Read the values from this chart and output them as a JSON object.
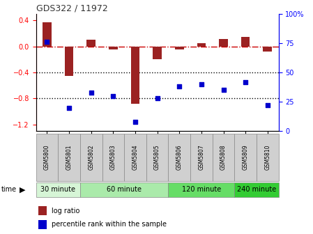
{
  "title": "GDS322 / 11972",
  "samples": [
    "GSM5800",
    "GSM5801",
    "GSM5802",
    "GSM5803",
    "GSM5804",
    "GSM5805",
    "GSM5806",
    "GSM5807",
    "GSM5808",
    "GSM5809",
    "GSM5810"
  ],
  "log_ratio": [
    0.37,
    -0.45,
    0.1,
    -0.05,
    -0.88,
    -0.2,
    -0.05,
    0.05,
    0.12,
    0.15,
    -0.08
  ],
  "percentile": [
    76,
    20,
    33,
    30,
    8,
    28,
    38,
    40,
    35,
    42,
    22
  ],
  "groups": [
    {
      "label": "30 minute",
      "start": 0,
      "end": 1,
      "color": "#d6f5d6"
    },
    {
      "label": "60 minute",
      "start": 2,
      "end": 5,
      "color": "#aaeaaa"
    },
    {
      "label": "120 minute",
      "start": 6,
      "end": 8,
      "color": "#66dd66"
    },
    {
      "label": "240 minute",
      "start": 9,
      "end": 10,
      "color": "#33cc33"
    }
  ],
  "ylim_left": [
    -1.3,
    0.5
  ],
  "ylim_right": [
    0,
    100
  ],
  "left_ticks": [
    0.4,
    0.0,
    -0.4,
    -0.8,
    -1.2
  ],
  "right_ticks": [
    100,
    75,
    50,
    25,
    0
  ],
  "bar_color": "#9B2222",
  "dot_color": "#0000CC",
  "hline_color": "#CC0000",
  "dotline_color": "black",
  "title_color": "#333333",
  "sample_box_color": "#d0d0d0"
}
